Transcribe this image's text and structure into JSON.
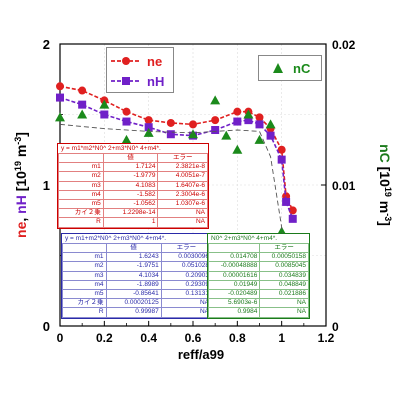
{
  "chart_data": {
    "type": "scatter",
    "xlabel": "reff/a99",
    "xlim": [
      0,
      1.2
    ],
    "x_ticks": [
      "0",
      "0.2",
      "0.4",
      "0.6",
      "0.8",
      "1",
      "1.2"
    ],
    "ylabel_left": {
      "ne": "ne",
      "sep": ",",
      "nH": "nH",
      "unit": "[10",
      "exp": "19",
      "unit2": "m",
      "exp2": "-3",
      "end": "]"
    },
    "ylim_left": [
      0,
      2
    ],
    "y_ticks_left": [
      "0",
      "1",
      "2"
    ],
    "ylabel_right": {
      "nC": "nC",
      "unit": "[10",
      "exp": "19",
      "unit2": "m",
      "exp2": "-3",
      "end": "]"
    },
    "ylim_right": [
      0,
      0.02
    ],
    "y_ticks_right": [
      "0",
      "0.01",
      "0.02"
    ],
    "grid": true,
    "legend_left": [
      "ne",
      "nH"
    ],
    "legend_right": [
      "nC"
    ],
    "series": [
      {
        "name": "ne",
        "axis": "left",
        "color": "#e02020",
        "marker": "circle",
        "x": [
          0,
          0.1,
          0.2,
          0.3,
          0.4,
          0.5,
          0.6,
          0.7,
          0.8,
          0.85,
          0.9,
          0.95,
          1.0,
          1.02,
          1.05
        ],
        "y": [
          1.7,
          1.67,
          1.6,
          1.52,
          1.46,
          1.44,
          1.43,
          1.46,
          1.52,
          1.52,
          1.48,
          1.4,
          1.25,
          0.92,
          0.82
        ]
      },
      {
        "name": "nH",
        "axis": "left",
        "color": "#7020c8",
        "marker": "square",
        "x": [
          0,
          0.1,
          0.2,
          0.3,
          0.4,
          0.5,
          0.6,
          0.7,
          0.8,
          0.85,
          0.9,
          0.95,
          1.0,
          1.02,
          1.05
        ],
        "y": [
          1.62,
          1.57,
          1.5,
          1.45,
          1.41,
          1.36,
          1.35,
          1.39,
          1.45,
          1.46,
          1.43,
          1.35,
          1.18,
          0.88,
          0.76
        ]
      },
      {
        "name": "nC",
        "axis": "right",
        "color": "#1b8a1b",
        "marker": "triangle",
        "x": [
          0,
          0.1,
          0.2,
          0.3,
          0.4,
          0.5,
          0.6,
          0.7,
          0.75,
          0.8,
          0.85,
          0.9,
          0.95,
          1.0,
          1.05
        ],
        "y": [
          0.0148,
          0.015,
          0.0157,
          0.0132,
          0.0137,
          0.0125,
          0.0136,
          0.016,
          0.0135,
          0.0125,
          0.015,
          0.0132,
          0.0143,
          0.0067,
          0.0009
        ]
      },
      {
        "name": "",
        "axis": "right",
        "color": "#555555",
        "marker": "none",
        "dashed": true,
        "x": [
          0,
          0.2,
          0.4,
          0.6,
          0.8,
          0.9,
          0.95,
          1.0,
          1.05
        ],
        "y": [
          0.0143,
          0.014,
          0.0138,
          0.0137,
          0.0139,
          0.0138,
          0.012,
          0.007,
          0.001
        ]
      }
    ],
    "fit_tables": {
      "red": {
        "equation": "y = m1*m2*N0^ 2+m3*N0^ 4+m4*.",
        "headers": [
          "",
          "値",
          "エラー"
        ],
        "rows": [
          [
            "m1",
            "1.7124",
            "2.3821e-8"
          ],
          [
            "m2",
            "-1.9779",
            "4.0051e-7"
          ],
          [
            "m3",
            "4.1083",
            "1.6407e-6"
          ],
          [
            "m4",
            "-1.582",
            "2.3004e-6"
          ],
          [
            "m5",
            "-1.0562",
            "1.0307e-6"
          ],
          [
            "カイ２乗",
            "1.2298e-14",
            "NA"
          ],
          [
            "R",
            "1",
            "NA"
          ]
        ]
      },
      "blue": {
        "equation": "y = m1+m2*N0^ 2+m3*N0^ 4+m4*.",
        "headers": [
          "",
          "値",
          "エラー"
        ],
        "rows": [
          [
            "m1",
            "1.6243",
            "0.0030096"
          ],
          [
            "m2",
            "-1.9751",
            "0.051028"
          ],
          [
            "m3",
            "4.1034",
            "0.20903"
          ],
          [
            "m4",
            "-1.8989",
            "0.29309"
          ],
          [
            "m5",
            "-0.85641",
            "0.13131"
          ],
          [
            "カイ２乗",
            "0.00020125",
            "NA"
          ],
          [
            "R",
            "0.99987",
            "NA"
          ]
        ]
      },
      "green": {
        "equation": "N0^ 2+m3*N0^ 4+m4*.",
        "headers": [
          "",
          "エラー"
        ],
        "rows": [
          [
            "0.014708",
            "0.00050158"
          ],
          [
            "-0.00048888",
            "0.0085045"
          ],
          [
            "0.00001616",
            "0.034839"
          ],
          [
            "0.01949",
            "0.048849"
          ],
          [
            "-0.020489",
            "0.021886"
          ],
          [
            "5.6903e-6",
            "NA"
          ],
          [
            "0.9984",
            "NA"
          ]
        ]
      }
    }
  }
}
